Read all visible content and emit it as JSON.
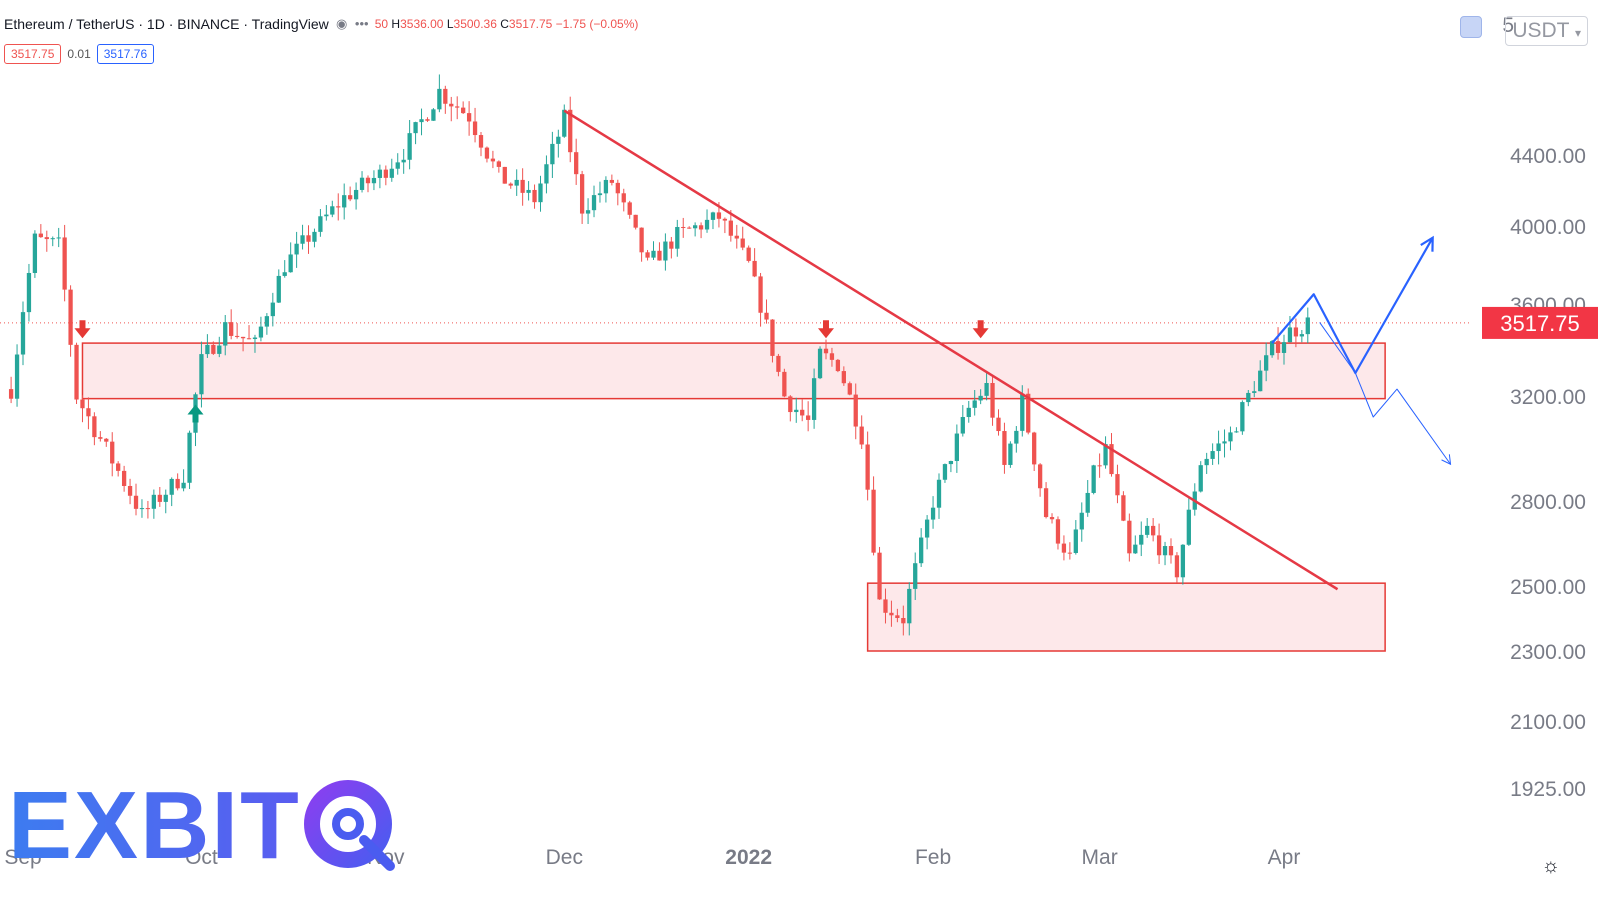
{
  "legend": {
    "symbol": "Ethereum / TetherUS · 1D · BINANCE · TradingView",
    "ohlc_o": "50",
    "ohlc_h": "3536.00",
    "ohlc_l": "3500.36",
    "ohlc_c": "3517.75",
    "ohlc_change": "−1.75 (−0.05%)"
  },
  "quote": {
    "sell": "3517.75",
    "spread": "0.01",
    "buy": "3517.76"
  },
  "currency": "USDT",
  "axis_top_fragment": "5",
  "logo": {
    "text": "EXBIT"
  },
  "colors": {
    "up": "#26a69a",
    "down": "#ef5350",
    "zone_fill": "#fde8ea",
    "zone_stroke": "#e53935",
    "trend": "#e53945",
    "projection": "#2962ff",
    "price_label": "#f23645",
    "axis_text": "#787b86"
  },
  "chart_data": {
    "type": "candlestick",
    "last_price": 3517.75,
    "y_ticks": [
      {
        "value": 4400,
        "label": "4400.00"
      },
      {
        "value": 4000,
        "label": "4000.00"
      },
      {
        "value": 3600,
        "label": "3600.00"
      },
      {
        "value": 3200,
        "label": "3200.00"
      },
      {
        "value": 2800,
        "label": "2800.00"
      },
      {
        "value": 2500,
        "label": "2500.00"
      },
      {
        "value": 2300,
        "label": "2300.00"
      },
      {
        "value": 2100,
        "label": "2100.00"
      },
      {
        "value": 1925,
        "label": "1925.00"
      }
    ],
    "x_ticks": [
      {
        "label": "Sep",
        "date": "2021-09-01"
      },
      {
        "label": "Oct",
        "date": "2021-10-01"
      },
      {
        "label": "Nov",
        "date": "2021-11-01"
      },
      {
        "label": "Dec",
        "date": "2021-12-01"
      },
      {
        "label": "2022",
        "date": "2022-01-01",
        "bold": true
      },
      {
        "label": "Feb",
        "date": "2022-02-01"
      },
      {
        "label": "Mar",
        "date": "2022-03-01"
      },
      {
        "label": "Apr",
        "date": "2022-04-01"
      }
    ],
    "anchors": [
      [
        "2021-08-30",
        3230
      ],
      [
        "2021-09-03",
        3930
      ],
      [
        "2021-09-07",
        3900
      ],
      [
        "2021-09-10",
        3200
      ],
      [
        "2021-09-21",
        2750
      ],
      [
        "2021-09-28",
        2900
      ],
      [
        "2021-10-01",
        3350
      ],
      [
        "2021-10-05",
        3500
      ],
      [
        "2021-10-10",
        3420
      ],
      [
        "2021-10-15",
        3800
      ],
      [
        "2021-10-20",
        3980
      ],
      [
        "2021-10-25",
        4160
      ],
      [
        "2021-10-31",
        4290
      ],
      [
        "2021-11-04",
        4420
      ],
      [
        "2021-11-10",
        4760
      ],
      [
        "2021-11-15",
        4620
      ],
      [
        "2021-11-20",
        4280
      ],
      [
        "2021-11-26",
        4150
      ],
      [
        "2021-12-01",
        4600
      ],
      [
        "2021-12-04",
        4100
      ],
      [
        "2021-12-09",
        4250
      ],
      [
        "2021-12-15",
        3800
      ],
      [
        "2021-12-20",
        3950
      ],
      [
        "2021-12-27",
        4050
      ],
      [
        "2022-01-01",
        3800
      ],
      [
        "2022-01-07",
        3200
      ],
      [
        "2022-01-11",
        3100
      ],
      [
        "2022-01-13",
        3380
      ],
      [
        "2022-01-16",
        3340
      ],
      [
        "2022-01-20",
        3050
      ],
      [
        "2022-01-23",
        2450
      ],
      [
        "2022-01-27",
        2400
      ],
      [
        "2022-02-01",
        2800
      ],
      [
        "2022-02-07",
        3150
      ],
      [
        "2022-02-10",
        3240
      ],
      [
        "2022-02-13",
        2930
      ],
      [
        "2022-02-16",
        3180
      ],
      [
        "2022-02-20",
        2750
      ],
      [
        "2022-02-24",
        2600
      ],
      [
        "2022-02-28",
        2900
      ],
      [
        "2022-03-02",
        3000
      ],
      [
        "2022-03-06",
        2600
      ],
      [
        "2022-03-09",
        2700
      ],
      [
        "2022-03-14",
        2550
      ],
      [
        "2022-03-18",
        2950
      ],
      [
        "2022-03-23",
        3050
      ],
      [
        "2022-03-27",
        3250
      ],
      [
        "2022-03-30",
        3400
      ],
      [
        "2022-04-02",
        3480
      ],
      [
        "2022-04-05",
        3517.75
      ]
    ],
    "zones": [
      {
        "start": "2021-09-11",
        "end": "2022-04-18",
        "top": 3430,
        "bottom": 3190
      },
      {
        "start": "2022-01-21",
        "end": "2022-04-18",
        "top": 2510,
        "bottom": 2300
      }
    ],
    "trendline": {
      "start": [
        "2021-12-01",
        4650
      ],
      "end": [
        "2022-04-10",
        2490
      ]
    },
    "arrows_down": [
      [
        "2021-09-11",
        3460
      ],
      [
        "2022-01-14",
        3460
      ],
      [
        "2022-02-09",
        3460
      ]
    ],
    "arrows_up": [
      [
        "2021-09-30",
        3160
      ]
    ],
    "projection_bull": [
      [
        "2022-03-30",
        3430
      ],
      [
        "2022-04-06",
        3650
      ],
      [
        "2022-04-13",
        3300
      ],
      [
        "2022-04-26",
        3940
      ]
    ],
    "projection_bear": [
      [
        "2022-04-07",
        3520
      ],
      [
        "2022-04-13",
        3300
      ],
      [
        "2022-04-16",
        3120
      ],
      [
        "2022-04-20",
        3230
      ],
      [
        "2022-04-29",
        2940
      ]
    ]
  }
}
